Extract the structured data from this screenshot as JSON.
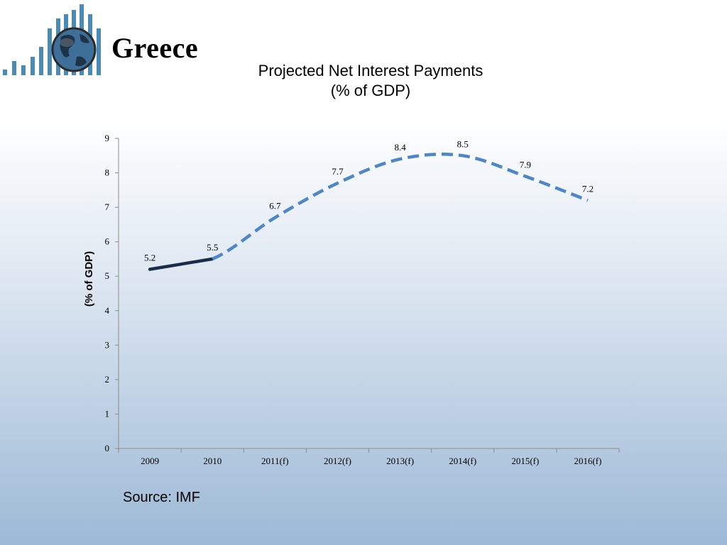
{
  "header": {
    "title": "Greece"
  },
  "footer": {
    "source": "Source: IMF"
  },
  "colors": {
    "actual_line": "#1a2e4a",
    "projected_line": "#4f86c6",
    "logo_bars": "#4a8bb5"
  },
  "icons": {
    "logo": "globe-with-bars-icon"
  },
  "chart_data": {
    "type": "line",
    "title": "Projected Net Interest Payments",
    "subtitle": "(% of GDP)",
    "xlabel": "",
    "ylabel": "(% of GDP)",
    "categories": [
      "2009",
      "2010",
      "2011(f)",
      "2012(f)",
      "2013(f)",
      "2014(f)",
      "2015(f)",
      "2016(f)"
    ],
    "series": [
      {
        "values": [
          5.2,
          5.5,
          6.7,
          7.7,
          8.4,
          8.5,
          7.9,
          7.2
        ],
        "actual_through_index": 1,
        "actual_style": "solid",
        "projected_style": "dashed",
        "smoothed": true
      }
    ],
    "data_labels": [
      "5.2",
      "5.5",
      "6.7",
      "7.7",
      "8.4",
      "8.5",
      "7.9",
      "7.2"
    ],
    "ylim": [
      0,
      9
    ],
    "yticks": [
      0,
      1,
      2,
      3,
      4,
      5,
      6,
      7,
      8,
      9
    ],
    "grid": false,
    "legend": "none"
  }
}
